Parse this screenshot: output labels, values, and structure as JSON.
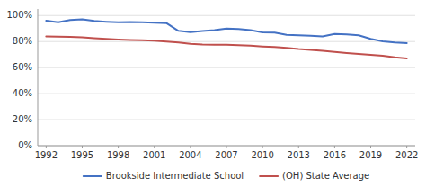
{
  "chart_data": {
    "type": "line",
    "x": [
      1992,
      1993,
      1994,
      1995,
      1996,
      1997,
      1998,
      1999,
      2000,
      2001,
      2002,
      2003,
      2004,
      2005,
      2006,
      2007,
      2008,
      2009,
      2010,
      2011,
      2012,
      2013,
      2014,
      2015,
      2016,
      2017,
      2018,
      2019,
      2020,
      2021,
      2022
    ],
    "series": [
      {
        "name": "Brookside Intermediate School",
        "color": "#4472C4",
        "values": [
          0.96,
          0.948,
          0.965,
          0.97,
          0.958,
          0.952,
          0.948,
          0.95,
          0.948,
          0.944,
          0.942,
          0.882,
          0.872,
          0.88,
          0.888,
          0.9,
          0.896,
          0.888,
          0.87,
          0.868,
          0.852,
          0.848,
          0.845,
          0.84,
          0.858,
          0.855,
          0.848,
          0.82,
          0.802,
          0.793,
          0.788
        ]
      },
      {
        "name": "(OH) State Average",
        "color": "#C0504D",
        "values": [
          0.84,
          0.838,
          0.835,
          0.832,
          0.825,
          0.82,
          0.815,
          0.812,
          0.81,
          0.806,
          0.8,
          0.792,
          0.782,
          0.778,
          0.776,
          0.775,
          0.772,
          0.768,
          0.762,
          0.758,
          0.752,
          0.742,
          0.735,
          0.728,
          0.72,
          0.712,
          0.705,
          0.698,
          0.69,
          0.678,
          0.67
        ]
      }
    ],
    "xlim": [
      1991.3,
      2022.7
    ],
    "ylim": [
      0.0,
      1.05
    ],
    "xticks": [
      1992,
      1995,
      1998,
      2001,
      2004,
      2007,
      2010,
      2013,
      2016,
      2019,
      2022
    ],
    "yticks": [
      {
        "value": 0.0,
        "label": "0%"
      },
      {
        "value": 0.2,
        "label": "20%"
      },
      {
        "value": 0.4,
        "label": "40%"
      },
      {
        "value": 0.6,
        "label": "60%"
      },
      {
        "value": 0.8,
        "label": "80%"
      },
      {
        "value": 1.0,
        "label": "100%"
      }
    ],
    "grid": true,
    "legend": "bottom"
  }
}
